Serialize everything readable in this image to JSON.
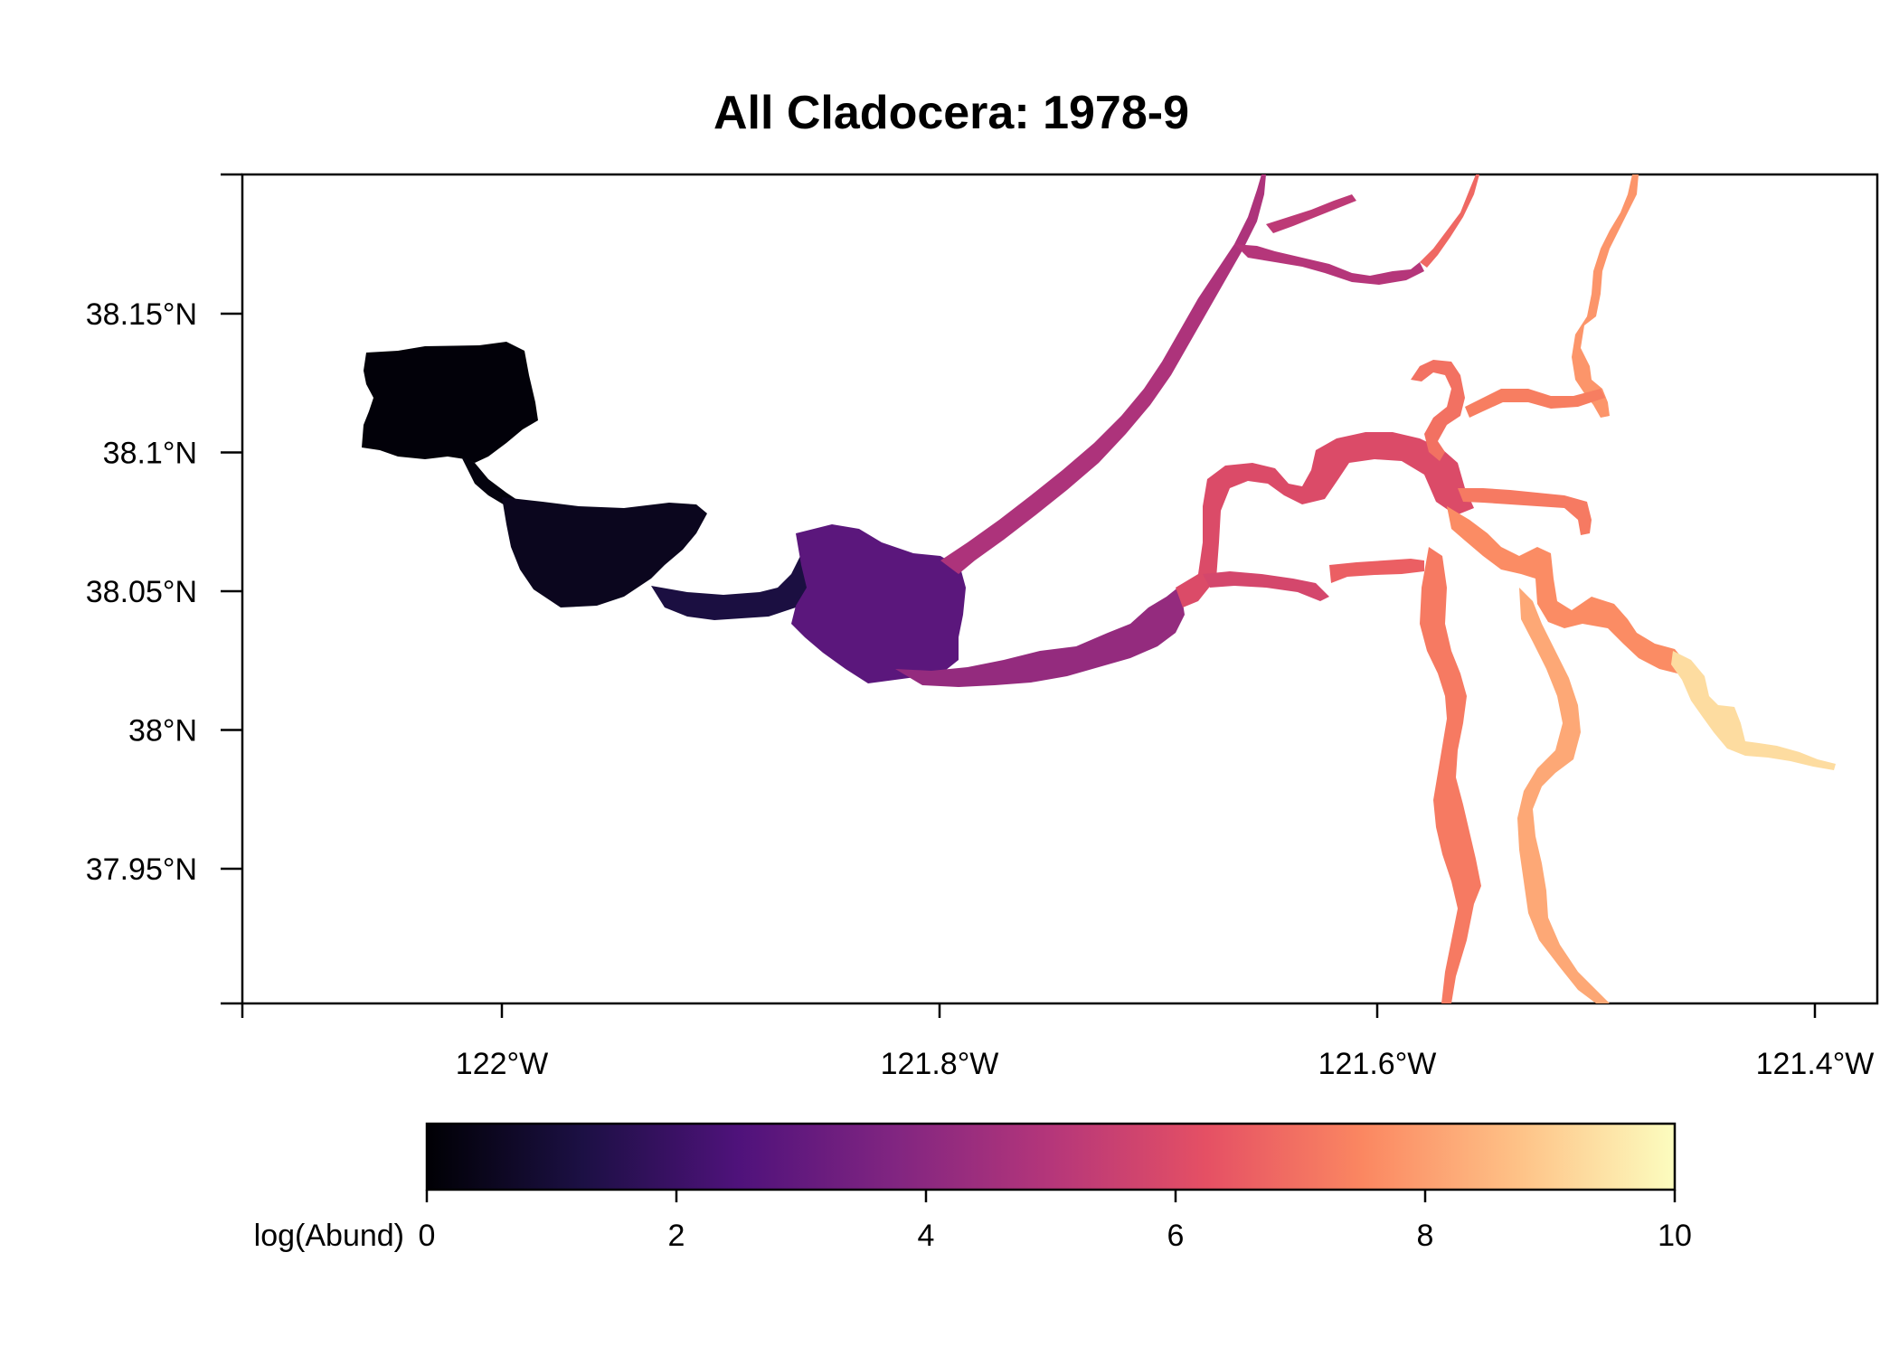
{
  "title": "All Cladocera: 1978-9",
  "map": {
    "x_ticks": [
      {
        "value": -122.0,
        "label": "122°W"
      },
      {
        "value": -121.8,
        "label": "121.8°W"
      },
      {
        "value": -121.6,
        "label": "121.6°W"
      },
      {
        "value": -121.4,
        "label": "121.4°W"
      }
    ],
    "y_ticks": [
      {
        "value": 38.15,
        "label": "38.15°N"
      },
      {
        "value": 38.1,
        "label": "38.1°N"
      },
      {
        "value": 38.05,
        "label": "38.05°N"
      },
      {
        "value": 38.0,
        "label": "38°N"
      },
      {
        "value": 37.95,
        "label": "37.95°N"
      }
    ],
    "xlim": [
      -122.12,
      -121.37
    ],
    "ylim": [
      37.9,
      38.2
    ]
  },
  "legend": {
    "label": "log(Abund)",
    "min": 0,
    "max": 10,
    "ticks": [
      0,
      2,
      4,
      6,
      8,
      10
    ],
    "colors": [
      "#000004",
      "#1c1044",
      "#4f127b",
      "#812581",
      "#b5367a",
      "#e55064",
      "#fb8761",
      "#fec287",
      "#fcfdbf"
    ]
  },
  "chart_data": {
    "type": "heatmap",
    "title": "All Cladocera: 1978-9",
    "color_scale_label": "log(Abund)",
    "value_range": [
      0,
      10
    ],
    "regions": [
      {
        "name": "",
        "lon": -122.05,
        "lat": 38.12,
        "value": 0.2
      },
      {
        "name": "",
        "lon": -121.97,
        "lat": 38.06,
        "value": 0.5
      },
      {
        "name": "",
        "lon": -121.89,
        "lat": 38.045,
        "value": 1.3
      },
      {
        "name": "",
        "lon": -121.82,
        "lat": 38.04,
        "value": 3.0
      },
      {
        "name": "",
        "lon": -121.76,
        "lat": 38.025,
        "value": 4.2
      },
      {
        "name": "",
        "lon": -121.72,
        "lat": 38.09,
        "value": 4.5
      },
      {
        "name": "",
        "lon": -121.66,
        "lat": 38.16,
        "value": 5.0
      },
      {
        "name": "",
        "lon": -121.69,
        "lat": 38.04,
        "value": 5.3
      },
      {
        "name": "",
        "lon": -121.62,
        "lat": 38.095,
        "value": 6.3
      },
      {
        "name": "",
        "lon": -121.57,
        "lat": 38.07,
        "value": 7.0
      },
      {
        "name": "",
        "lon": -121.56,
        "lat": 38.0,
        "value": 7.5
      },
      {
        "name": "",
        "lon": -121.52,
        "lat": 37.98,
        "value": 8.3
      },
      {
        "name": "",
        "lon": -121.46,
        "lat": 38.02,
        "value": 8.6
      },
      {
        "name": "",
        "lon": -121.42,
        "lat": 37.99,
        "value": 9.6
      }
    ]
  }
}
